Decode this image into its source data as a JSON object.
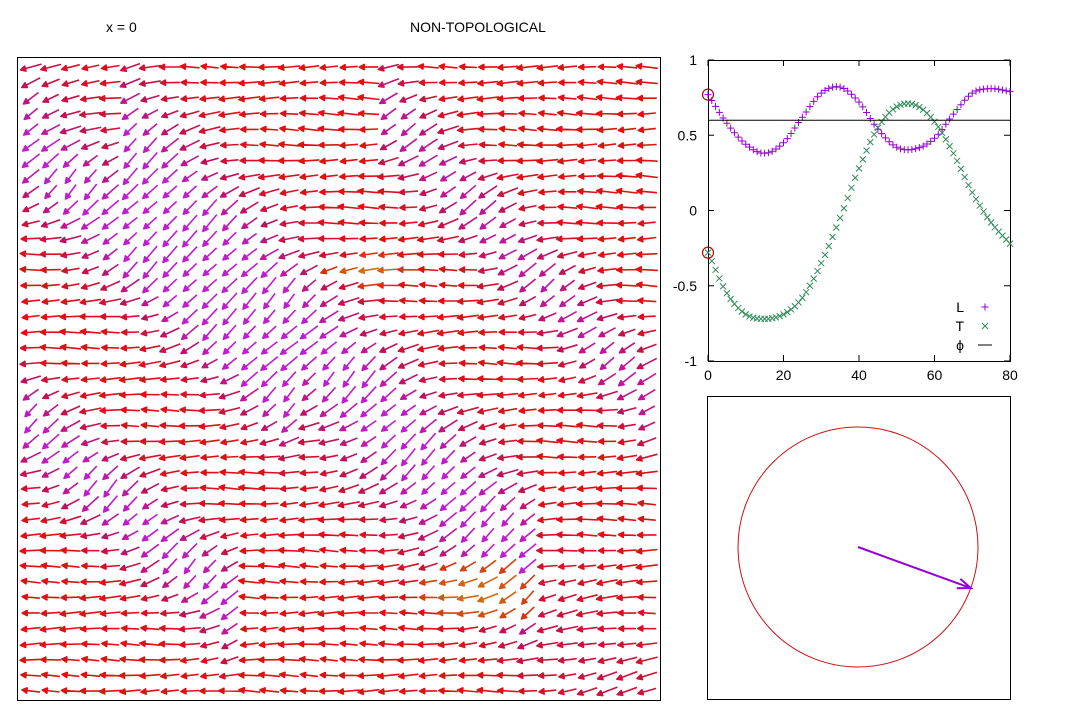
{
  "header": {
    "x_label": "x = 0",
    "title": "NON-TOPOLOGICAL"
  },
  "chart_data": [
    {
      "type": "quiver",
      "title": "",
      "grid_columns": 32,
      "grid_rows": 41,
      "vector_length": 1.4,
      "colors": {
        "horizontal": "#e01010",
        "mixed": "#c0105c",
        "diagonal": "#c01cd0",
        "accent_orange": "#d07010",
        "frame": "#000000"
      },
      "regions": [
        {
          "name": "horizontal-field",
          "direction_deg": 180,
          "color_key": "horizontal"
        },
        {
          "name": "upper-left-diagonal-band",
          "direction_deg": 225,
          "color_key": "diagonal"
        },
        {
          "name": "central-diagonal-band",
          "direction_deg": 230,
          "color_key": "diagonal"
        },
        {
          "name": "lower-right-orange-patch",
          "direction_deg": 170,
          "color_key": "accent_orange"
        }
      ]
    },
    {
      "type": "scatter",
      "xlim": [
        0,
        80
      ],
      "ylim": [
        -1,
        1
      ],
      "xticks": [
        0,
        20,
        40,
        60,
        80
      ],
      "yticks": [
        -1,
        -0.5,
        0,
        0.5,
        1
      ],
      "ytick_labels": [
        "-1",
        "-0.5",
        "0",
        "0.5",
        "1"
      ],
      "xlabel": "",
      "ylabel": "",
      "legend_position": "bottom-right",
      "series": [
        {
          "name": "L",
          "marker": "+",
          "color": "#9400d3",
          "x": [
            0,
            5,
            10,
            15,
            20,
            25,
            30,
            35,
            40,
            45,
            50,
            55,
            60,
            65,
            70,
            75,
            80
          ],
          "y": [
            0.77,
            0.58,
            0.44,
            0.38,
            0.45,
            0.62,
            0.78,
            0.82,
            0.72,
            0.54,
            0.42,
            0.41,
            0.48,
            0.64,
            0.78,
            0.81,
            0.79
          ]
        },
        {
          "name": "T",
          "marker": "x",
          "color": "#2e8b57",
          "x": [
            0,
            5,
            10,
            15,
            20,
            25,
            30,
            35,
            40,
            45,
            50,
            55,
            60,
            65,
            70,
            75,
            80
          ],
          "y": [
            -0.28,
            -0.55,
            -0.69,
            -0.72,
            -0.69,
            -0.58,
            -0.35,
            -0.05,
            0.28,
            0.55,
            0.69,
            0.7,
            0.59,
            0.38,
            0.12,
            -0.08,
            -0.22
          ]
        },
        {
          "name": "ϕ",
          "marker": "line",
          "color": "#000000",
          "value": 0.6
        }
      ],
      "annotations": [
        {
          "type": "open-circle",
          "x": 0,
          "y": 0.77,
          "color": "#c00000"
        },
        {
          "type": "open-circle",
          "x": 0,
          "y": -0.28,
          "color": "#c00000"
        }
      ]
    },
    {
      "type": "polar-indicator",
      "circle_radius": 1,
      "circle_color": "#d01010",
      "arrow_color": "#9400d3",
      "arrow": {
        "angle_deg": -20,
        "length": 1
      }
    }
  ]
}
